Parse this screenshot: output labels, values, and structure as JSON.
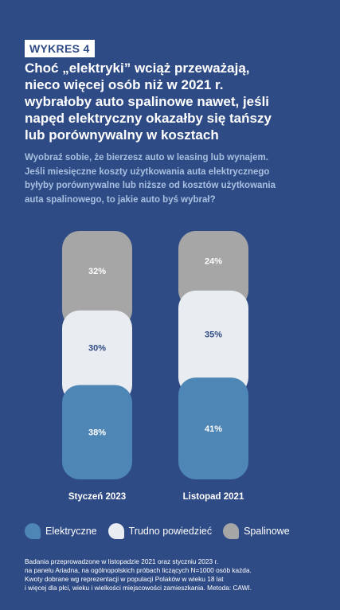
{
  "header": {
    "tag": "WYKRES 4",
    "title_lines": [
      "Choć „elektryki” wciąż przeważają,",
      "nieco więcej osób niż w 2021 r.",
      "wybrałoby auto spalinowe nawet, jeśli",
      "napęd elektryczny okazałby się tańszy",
      "lub porównywalny w kosztach"
    ],
    "subtitle_lines": [
      "Wyobraź sobie, że bierzesz auto w leasing lub wynajem.",
      "Jeśli miesięczne koszty użytkowania auta elektrycznego",
      "byłyby porównywalne lub niższe od kosztów użytkowania",
      "auta spalinowego, to jakie auto byś wybrał?"
    ]
  },
  "chart_data": {
    "type": "bar",
    "stacked": true,
    "unit": "%",
    "categories": [
      "Styczeń 2023",
      "Listopad 2021"
    ],
    "series": [
      {
        "name": "Elektryczne",
        "values": [
          38,
          41
        ],
        "color": "#4e86b6"
      },
      {
        "name": "Trudno powiedzieć",
        "values": [
          30,
          35
        ],
        "color": "#e9ecf1"
      },
      {
        "name": "Spalinowe",
        "values": [
          32,
          24
        ],
        "color": "#a6a6a6"
      }
    ],
    "ylim": [
      0,
      100
    ],
    "legend_position": "bottom"
  },
  "colors": {
    "background": "#2f4b85",
    "label_on_dark": "#ffffff",
    "label_on_light": "#2f4b85"
  },
  "footnote_lines": [
    "Badania przeprowadzone w listopadzie 2021 oraz styczniu 2023 r.",
    "na panelu Ariadna, na ogólnopolskich próbach liczących N=1000 osób każda.",
    "Kwoty dobrane wg reprezentacji w populacji Polaków w wieku 18 lat",
    "i więcej dla płci, wieku i wielkości miejscowości zamieszkania. Metoda: CAWI."
  ]
}
